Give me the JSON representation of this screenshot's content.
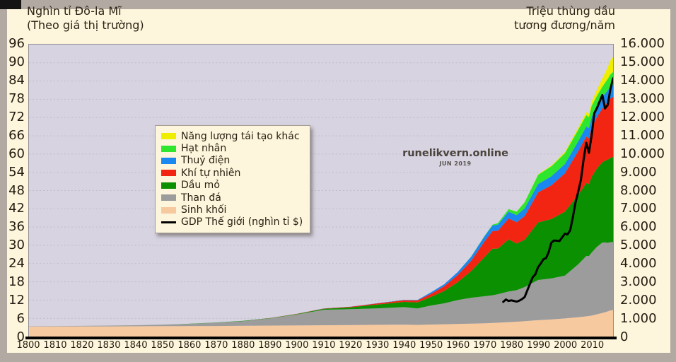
{
  "watermark": {
    "main": "runelikvern.online",
    "sub": "JUN 2019"
  },
  "left_axis": {
    "title": [
      "Nghìn tỉ Đô-la Mĩ",
      "(Theo giá thị trường)"
    ],
    "ticks": [
      "96",
      "90",
      "84",
      "78",
      "72",
      "66",
      "60",
      "54",
      "48",
      "42",
      "36",
      "30",
      "24",
      "18",
      "12",
      "6",
      "0"
    ],
    "max": 96
  },
  "right_axis": {
    "title": [
      "Triệu thùng dầu",
      "tương đương/năm"
    ],
    "ticks": [
      "16.000",
      "15.000",
      "14.000",
      "13.000",
      "12.000",
      "11.000",
      "10.000",
      "9.000",
      "8.000",
      "7.000",
      "6.000",
      "5.000",
      "4.000",
      "3.000",
      "2.000",
      "1.000",
      "0"
    ],
    "max": 16000
  },
  "x_axis": {
    "ticks": [
      "1800",
      "1810",
      "1820",
      "1830",
      "1840",
      "1850",
      "1860",
      "1870",
      "1880",
      "1890",
      "1900",
      "1910",
      "1920",
      "1930",
      "1940",
      "1950",
      "1960",
      "1970",
      "1980",
      "1990",
      "2000",
      "2010"
    ]
  },
  "legend": {
    "items": [
      {
        "label": "Năng lượng tái tạo khác",
        "color": "#f0ee00",
        "type": "area"
      },
      {
        "label": "Hạt nhân",
        "color": "#2ee62e",
        "type": "area"
      },
      {
        "label": "Thuỷ điện",
        "color": "#1b87f0",
        "type": "area"
      },
      {
        "label": "Khí tự nhiên",
        "color": "#f22512",
        "type": "area"
      },
      {
        "label": "Dầu mỏ",
        "color": "#0a9000",
        "type": "area"
      },
      {
        "label": "Than đá",
        "color": "#9c9c9c",
        "type": "area"
      },
      {
        "label": "Sinh khối",
        "color": "#f7c99f",
        "type": "area"
      },
      {
        "label": "GDP Thế giới (nghìn tỉ $)",
        "color": "#000000",
        "type": "line"
      }
    ]
  },
  "chart_data": {
    "type": "area",
    "stacked": true,
    "x_range": [
      1800,
      2018
    ],
    "left_axis_label": "Nghìn tỉ Đô-la Mĩ (Theo giá thị trường)",
    "right_axis_label": "Triệu thùng dầu tương đương/năm",
    "left_axis_range": [
      0,
      96
    ],
    "right_axis_range": [
      0,
      16000
    ],
    "grid_step": 1000,
    "x": [
      1800,
      1810,
      1820,
      1830,
      1840,
      1850,
      1860,
      1870,
      1880,
      1890,
      1900,
      1910,
      1920,
      1930,
      1940,
      1945,
      1950,
      1955,
      1960,
      1965,
      1970,
      1973,
      1975,
      1979,
      1982,
      1985,
      1990,
      1995,
      2000,
      2005,
      2008,
      2009,
      2010,
      2012,
      2014,
      2015,
      2016,
      2017,
      2018
    ],
    "series": [
      {
        "name": "Sinh khối",
        "color": "#f7c99f",
        "values": [
          545,
          550,
          555,
          560,
          565,
          570,
          575,
          580,
          590,
          600,
          610,
          620,
          630,
          645,
          650,
          640,
          660,
          670,
          690,
          710,
          730,
          745,
          760,
          790,
          815,
          840,
          900,
          940,
          990,
          1060,
          1110,
          1130,
          1150,
          1220,
          1290,
          1330,
          1380,
          1430,
          1450
        ]
      },
      {
        "name": "Than đá",
        "color": "#9c9c9c",
        "values": [
          15,
          22,
          30,
          40,
          55,
          80,
          120,
          180,
          250,
          400,
          600,
          850,
          870,
          900,
          960,
          900,
          1040,
          1150,
          1310,
          1420,
          1480,
          1520,
          1560,
          1680,
          1730,
          1870,
          2200,
          2250,
          2350,
          2900,
          3300,
          3280,
          3450,
          3700,
          3860,
          3830,
          3750,
          3740,
          3730
        ]
      },
      {
        "name": "Dầu mỏ",
        "color": "#0a9000",
        "values": [
          0,
          0,
          0,
          0,
          0,
          2,
          5,
          10,
          20,
          12,
          25,
          50,
          100,
          210,
          290,
          330,
          470,
          680,
          980,
          1450,
          2150,
          2550,
          2500,
          2850,
          2550,
          2600,
          3150,
          3250,
          3500,
          3800,
          4000,
          3950,
          4150,
          4300,
          4400,
          4480,
          4560,
          4620,
          4660
        ]
      },
      {
        "name": "Khí tự nhiên",
        "color": "#f22512",
        "values": [
          0,
          0,
          0,
          0,
          0,
          0,
          0,
          1,
          2,
          4,
          10,
          15,
          30,
          60,
          90,
          110,
          170,
          260,
          390,
          570,
          850,
          960,
          980,
          1150,
          1170,
          1290,
          1650,
          1850,
          2100,
          2400,
          2550,
          2500,
          2700,
          2820,
          2950,
          3050,
          3150,
          3250,
          3300
        ]
      },
      {
        "name": "Thuỷ điện",
        "color": "#1b87f0",
        "values": [
          0,
          0,
          0,
          0,
          0,
          0,
          0,
          0,
          0,
          1,
          2,
          4,
          6,
          12,
          20,
          25,
          80,
          110,
          160,
          220,
          280,
          310,
          330,
          370,
          390,
          420,
          460,
          490,
          510,
          540,
          550,
          560,
          570,
          590,
          610,
          620,
          640,
          660,
          670
        ]
      },
      {
        "name": "Hạt nhân",
        "color": "#2ee62e",
        "values": [
          0,
          0,
          0,
          0,
          0,
          0,
          0,
          0,
          0,
          0,
          0,
          0,
          0,
          0,
          0,
          0,
          0,
          0,
          1,
          10,
          20,
          45,
          85,
          140,
          190,
          340,
          500,
          550,
          590,
          630,
          620,
          610,
          620,
          560,
          580,
          600,
          630,
          660,
          690
        ]
      },
      {
        "name": "Năng lượng tái tạo khác",
        "color": "#f0ee00",
        "values": [
          0,
          0,
          0,
          0,
          0,
          0,
          0,
          0,
          0,
          0,
          0,
          0,
          0,
          0,
          0,
          0,
          0,
          0,
          0,
          0,
          0,
          0,
          0,
          0,
          5,
          10,
          25,
          40,
          65,
          110,
          160,
          180,
          220,
          330,
          450,
          530,
          640,
          760,
          820
        ]
      }
    ],
    "gdp_line": {
      "name": "GDP Thế giới (nghìn tỉ $)",
      "color": "#000000",
      "axis": "left",
      "points": [
        [
          1977,
          11.4
        ],
        [
          1978,
          12.2
        ],
        [
          1979,
          11.7
        ],
        [
          1980,
          11.9
        ],
        [
          1981,
          11.7
        ],
        [
          1982,
          11.5
        ],
        [
          1983,
          11.8
        ],
        [
          1984,
          12.3
        ],
        [
          1985,
          13.0
        ],
        [
          1986,
          15.2
        ],
        [
          1987,
          17.4
        ],
        [
          1988,
          19.5
        ],
        [
          1989,
          20.5
        ],
        [
          1990,
          22.8
        ],
        [
          1991,
          24.0
        ],
        [
          1992,
          25.4
        ],
        [
          1993,
          25.8
        ],
        [
          1994,
          27.8
        ],
        [
          1995,
          30.9
        ],
        [
          1996,
          31.6
        ],
        [
          1997,
          31.5
        ],
        [
          1998,
          31.4
        ],
        [
          1999,
          32.6
        ],
        [
          2000,
          33.8
        ],
        [
          2001,
          33.6
        ],
        [
          2002,
          34.9
        ],
        [
          2003,
          39.2
        ],
        [
          2004,
          44.1
        ],
        [
          2005,
          47.6
        ],
        [
          2006,
          51.5
        ],
        [
          2007,
          58.1
        ],
        [
          2008,
          63.7
        ],
        [
          2009,
          60.4
        ],
        [
          2010,
          66.1
        ],
        [
          2011,
          73.4
        ],
        [
          2012,
          75.1
        ],
        [
          2013,
          77.3
        ],
        [
          2014,
          79.4
        ],
        [
          2015,
          75.0
        ],
        [
          2016,
          76.1
        ],
        [
          2017,
          81.3
        ],
        [
          2018,
          84.9
        ]
      ]
    }
  }
}
